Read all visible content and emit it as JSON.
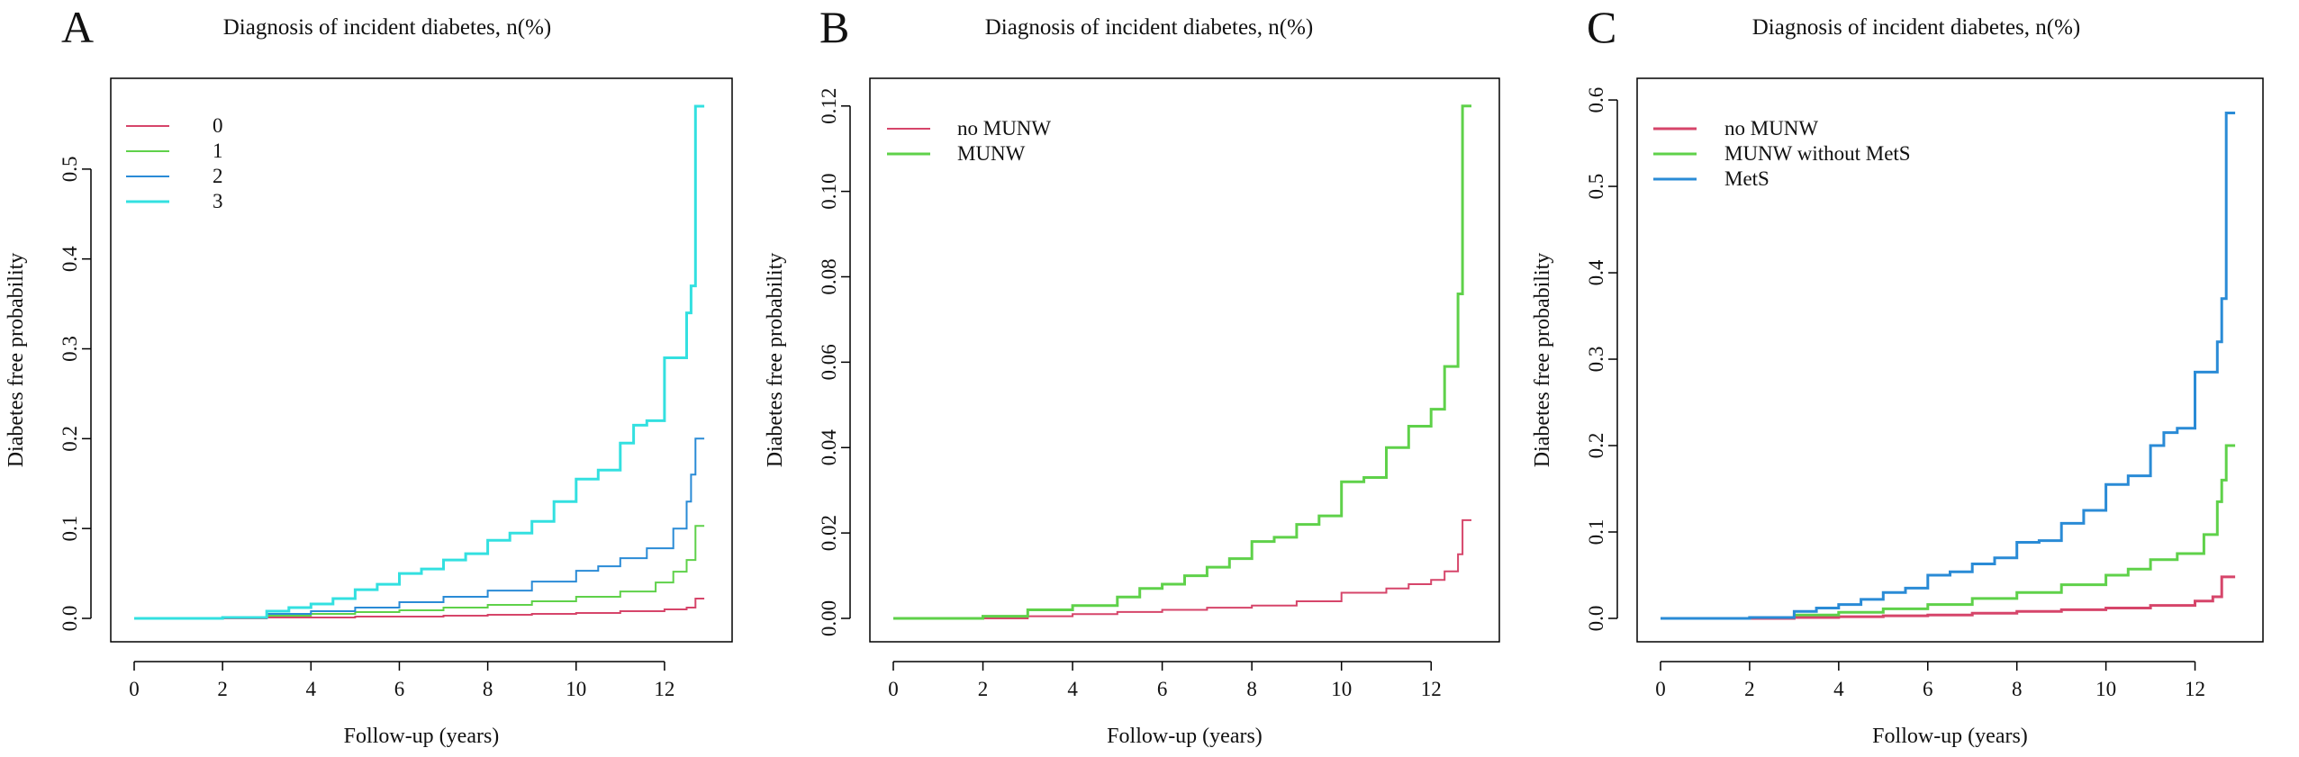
{
  "colors": {
    "red": "#d6456a",
    "green": "#5fd14a",
    "blue": "#2a8bd6",
    "cyan": "#33e0e0",
    "axis": "#000000"
  },
  "chart_data": [
    {
      "type": "line",
      "panel_label": "A",
      "title": "Diagnosis of incident diabetes, n(%)",
      "xlabel": "Follow-up (years)",
      "ylabel": "Diabetes free probability",
      "xlim": [
        0,
        13
      ],
      "ylim": [
        0,
        0.575
      ],
      "xticks": [
        0,
        2,
        4,
        6,
        8,
        10,
        12
      ],
      "xtick_labels": [
        "0",
        "2",
        "4",
        "6",
        "8",
        "10",
        "12"
      ],
      "yticks": [
        0,
        0.1,
        0.2,
        0.3,
        0.4,
        0.5
      ],
      "ytick_labels": [
        "0.0",
        "0.1",
        "0.2",
        "0.3",
        "0.4",
        "0.5"
      ],
      "legend_position": "top-left",
      "series": [
        {
          "name": "0",
          "color": "#d6456a",
          "width": 2,
          "x": [
            0,
            3,
            5,
            7,
            8,
            9,
            10,
            11,
            12,
            12.5,
            12.7,
            12.9
          ],
          "y": [
            0,
            0.001,
            0.002,
            0.003,
            0.004,
            0.005,
            0.006,
            0.008,
            0.01,
            0.012,
            0.022,
            0.022
          ]
        },
        {
          "name": "1",
          "color": "#5fd14a",
          "width": 2,
          "x": [
            0,
            2,
            3,
            4,
            5,
            6,
            7,
            8,
            9,
            10,
            11,
            11.8,
            12.2,
            12.5,
            12.7,
            12.9
          ],
          "y": [
            0,
            0.001,
            0.003,
            0.005,
            0.007,
            0.009,
            0.012,
            0.015,
            0.019,
            0.024,
            0.03,
            0.04,
            0.052,
            0.065,
            0.103,
            0.103
          ]
        },
        {
          "name": "2",
          "color": "#2a8bd6",
          "width": 2,
          "x": [
            0,
            2,
            3,
            4,
            5,
            6,
            7,
            8,
            9,
            10,
            10.5,
            11,
            11.6,
            12.2,
            12.5,
            12.6,
            12.7,
            12.9
          ],
          "y": [
            0,
            0.001,
            0.005,
            0.008,
            0.012,
            0.018,
            0.024,
            0.031,
            0.041,
            0.053,
            0.058,
            0.067,
            0.078,
            0.1,
            0.13,
            0.16,
            0.2,
            0.2
          ]
        },
        {
          "name": "3",
          "color": "#33e0e0",
          "width": 3,
          "x": [
            0,
            2,
            3,
            3.5,
            4,
            4.5,
            5,
            5.5,
            6,
            6.5,
            7,
            7.5,
            8,
            8.5,
            9,
            9.5,
            10,
            10.5,
            11,
            11.3,
            11.6,
            12,
            12.5,
            12.6,
            12.7,
            12.9
          ],
          "y": [
            0,
            0.001,
            0.008,
            0.012,
            0.016,
            0.022,
            0.032,
            0.038,
            0.05,
            0.055,
            0.065,
            0.072,
            0.087,
            0.095,
            0.108,
            0.13,
            0.155,
            0.165,
            0.195,
            0.215,
            0.22,
            0.29,
            0.34,
            0.37,
            0.57,
            0.57
          ]
        }
      ]
    },
    {
      "type": "line",
      "panel_label": "B",
      "title": "Diagnosis of incident diabetes, n(%)",
      "xlabel": "Follow-up (years)",
      "ylabel": "Diabetes free probability",
      "xlim": [
        0,
        13
      ],
      "ylim": [
        0,
        0.121
      ],
      "xticks": [
        0,
        2,
        4,
        6,
        8,
        10,
        12
      ],
      "xtick_labels": [
        "0",
        "2",
        "4",
        "6",
        "8",
        "10",
        "12"
      ],
      "yticks": [
        0,
        0.02,
        0.04,
        0.06,
        0.08,
        0.1,
        0.12
      ],
      "ytick_labels": [
        "0.00",
        "0.02",
        "0.04",
        "0.06",
        "0.08",
        "0.10",
        "0.12"
      ],
      "legend_position": "top-left",
      "series": [
        {
          "name": "no MUNW",
          "color": "#d6456a",
          "width": 2,
          "x": [
            0,
            3,
            4,
            5,
            6,
            7,
            8,
            9,
            10,
            11,
            11.5,
            12,
            12.3,
            12.6,
            12.7,
            12.9
          ],
          "y": [
            0,
            0.0005,
            0.001,
            0.0015,
            0.002,
            0.0025,
            0.003,
            0.004,
            0.006,
            0.007,
            0.008,
            0.009,
            0.011,
            0.015,
            0.023,
            0.023
          ]
        },
        {
          "name": "MUNW",
          "color": "#5fd14a",
          "width": 3,
          "x": [
            0,
            2,
            3,
            4,
            5,
            5.5,
            6,
            6.5,
            7,
            7.5,
            8,
            8.5,
            9,
            9.5,
            10,
            10.5,
            11,
            11.5,
            12,
            12.3,
            12.6,
            12.7,
            12.9
          ],
          "y": [
            0,
            0.0005,
            0.002,
            0.003,
            0.005,
            0.007,
            0.008,
            0.01,
            0.012,
            0.014,
            0.018,
            0.019,
            0.022,
            0.024,
            0.032,
            0.033,
            0.04,
            0.045,
            0.049,
            0.059,
            0.076,
            0.12,
            0.12
          ]
        }
      ]
    },
    {
      "type": "line",
      "panel_label": "C",
      "title": "Diagnosis of incident diabetes, n(%)",
      "xlabel": "Follow-up (years)",
      "ylabel": "Diabetes free probability",
      "xlim": [
        0,
        13
      ],
      "ylim": [
        0,
        0.598
      ],
      "xticks": [
        0,
        2,
        4,
        6,
        8,
        10,
        12
      ],
      "xtick_labels": [
        "0",
        "2",
        "4",
        "6",
        "8",
        "10",
        "12"
      ],
      "yticks": [
        0,
        0.1,
        0.2,
        0.3,
        0.4,
        0.5,
        0.6
      ],
      "ytick_labels": [
        "0.0",
        "0.1",
        "0.2",
        "0.3",
        "0.4",
        "0.5",
        "0.6"
      ],
      "legend_position": "top-left",
      "series": [
        {
          "name": "no MUNW",
          "color": "#d6456a",
          "width": 3,
          "x": [
            0,
            3,
            4,
            5,
            6,
            7,
            8,
            9,
            10,
            11,
            12,
            12.4,
            12.6,
            12.7,
            12.9
          ],
          "y": [
            0,
            0.001,
            0.002,
            0.003,
            0.004,
            0.006,
            0.008,
            0.01,
            0.012,
            0.015,
            0.02,
            0.025,
            0.048,
            0.048,
            0.048
          ]
        },
        {
          "name": "MUNW without MetS",
          "color": "#5fd14a",
          "width": 3,
          "x": [
            0,
            2,
            3,
            4,
            5,
            6,
            7,
            8,
            9,
            10,
            10.5,
            11,
            11.6,
            12.2,
            12.5,
            12.6,
            12.7,
            12.9
          ],
          "y": [
            0,
            0.001,
            0.004,
            0.007,
            0.011,
            0.016,
            0.023,
            0.03,
            0.039,
            0.05,
            0.057,
            0.068,
            0.075,
            0.097,
            0.135,
            0.16,
            0.2,
            0.2
          ]
        },
        {
          "name": "MetS",
          "color": "#2a8bd6",
          "width": 3,
          "x": [
            0,
            2,
            3,
            3.5,
            4,
            4.5,
            5,
            5.5,
            6,
            6.5,
            7,
            7.5,
            8,
            8.5,
            9,
            9.5,
            10,
            10.5,
            11,
            11.3,
            11.6,
            12,
            12.5,
            12.6,
            12.7,
            12.9
          ],
          "y": [
            0,
            0.001,
            0.008,
            0.012,
            0.016,
            0.022,
            0.03,
            0.035,
            0.05,
            0.054,
            0.063,
            0.07,
            0.088,
            0.09,
            0.11,
            0.125,
            0.155,
            0.165,
            0.2,
            0.215,
            0.22,
            0.285,
            0.32,
            0.37,
            0.585,
            0.585
          ]
        }
      ]
    }
  ]
}
